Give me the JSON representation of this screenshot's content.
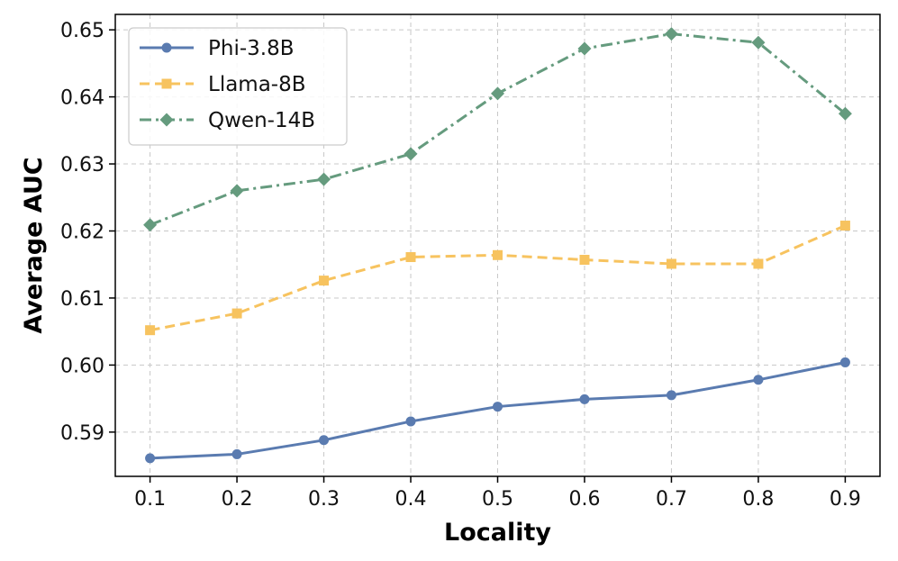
{
  "chart_data": {
    "type": "line",
    "title": "",
    "xlabel": "Locality",
    "ylabel": "Average AUC",
    "x": [
      0.1,
      0.2,
      0.3,
      0.4,
      0.5,
      0.6,
      0.7,
      0.8,
      0.9
    ],
    "x_tick_labels": [
      "0.1",
      "0.2",
      "0.3",
      "0.4",
      "0.5",
      "0.6",
      "0.7",
      "0.8",
      "0.9"
    ],
    "y_ticks": [
      0.59,
      0.6,
      0.61,
      0.62,
      0.63,
      0.64,
      0.65
    ],
    "y_tick_labels": [
      "0.59",
      "0.60",
      "0.61",
      "0.62",
      "0.63",
      "0.64",
      "0.65"
    ],
    "xlim": [
      0.06,
      0.94
    ],
    "ylim": [
      0.5834,
      0.6523
    ],
    "grid": true,
    "legend_position": "top-left",
    "series": [
      {
        "name": "Phi-3.8B",
        "color": "#5a7bb0",
        "line_style": "solid",
        "marker": "circle",
        "values": [
          0.5861,
          0.5867,
          0.5888,
          0.5916,
          0.5938,
          0.5949,
          0.5955,
          0.5978,
          0.6004
        ]
      },
      {
        "name": "Llama-8B",
        "color": "#f7c35f",
        "line_style": "dashed",
        "marker": "square",
        "values": [
          0.6052,
          0.6077,
          0.6126,
          0.6161,
          0.6164,
          0.6157,
          0.6151,
          0.6151,
          0.6208
        ]
      },
      {
        "name": "Qwen-14B",
        "color": "#659b7e",
        "line_style": "dashdot",
        "marker": "diamond",
        "values": [
          0.6209,
          0.626,
          0.6277,
          0.6315,
          0.6405,
          0.6472,
          0.6494,
          0.6481,
          0.6375
        ]
      }
    ]
  }
}
